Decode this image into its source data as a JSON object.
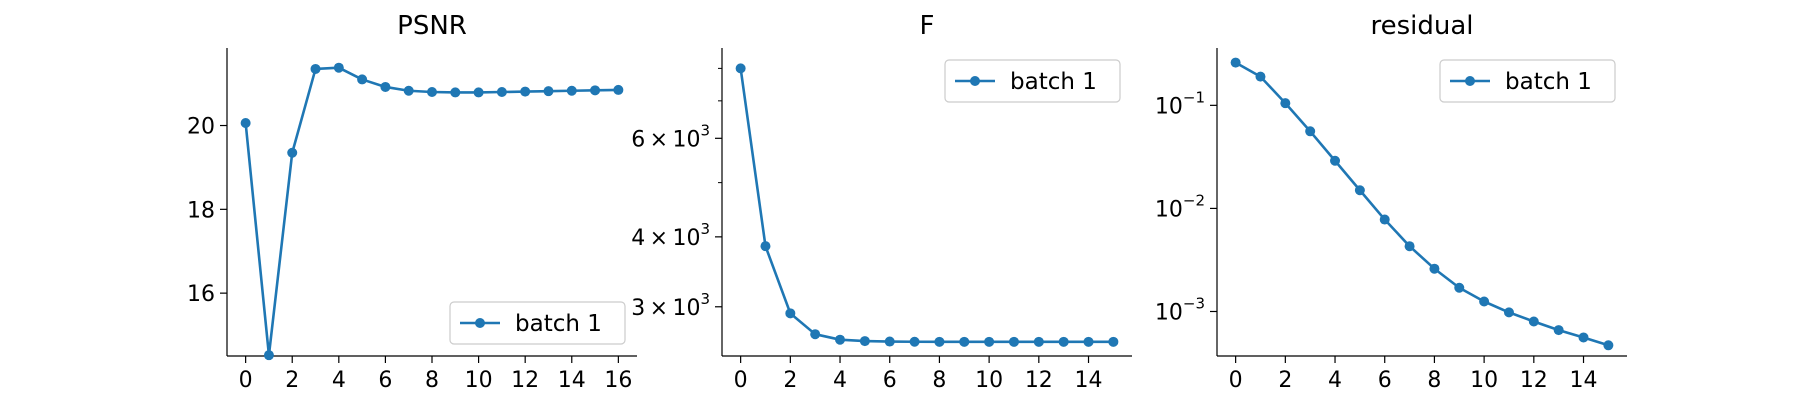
{
  "chart_data": [
    {
      "type": "line",
      "title": "PSNR",
      "xlabel": "",
      "ylabel": "",
      "yscale": "linear",
      "xlim": [
        -0.8,
        16.8
      ],
      "ylim": [
        14.5,
        21.85
      ],
      "x_ticks": [
        0,
        2,
        4,
        6,
        8,
        10,
        12,
        14,
        16
      ],
      "y_ticks": [
        {
          "value": 16,
          "label": "16"
        },
        {
          "value": 18,
          "label": "18"
        },
        {
          "value": 20,
          "label": "20"
        }
      ],
      "legend": {
        "position": "lower-right"
      },
      "grid": false,
      "series": [
        {
          "name": "batch 1",
          "color": "#1f77b4",
          "marker": "circle",
          "x": [
            0,
            1,
            2,
            3,
            4,
            5,
            6,
            7,
            8,
            9,
            10,
            11,
            12,
            13,
            14,
            15,
            16
          ],
          "values": [
            20.06,
            14.52,
            19.35,
            21.35,
            21.38,
            21.1,
            20.92,
            20.83,
            20.8,
            20.79,
            20.79,
            20.8,
            20.81,
            20.82,
            20.83,
            20.84,
            20.85
          ]
        }
      ]
    },
    {
      "type": "line",
      "title": "F",
      "xlabel": "",
      "ylabel": "",
      "yscale": "log",
      "xlim": [
        -0.75,
        15.75
      ],
      "ylim": [
        2450,
        8700
      ],
      "x_ticks": [
        0,
        2,
        4,
        6,
        8,
        10,
        12,
        14
      ],
      "y_ticks": [
        {
          "value": 3000,
          "mantissa": "3",
          "base": "10",
          "exponent": "3"
        },
        {
          "value": 4000,
          "mantissa": "4",
          "base": "10",
          "exponent": "3"
        },
        {
          "value": 6000,
          "mantissa": "6",
          "base": "10",
          "exponent": "3"
        }
      ],
      "y_minor_ticks": [
        5000,
        7000,
        8000
      ],
      "legend": {
        "position": "upper-right"
      },
      "grid": false,
      "series": [
        {
          "name": "batch 1",
          "color": "#1f77b4",
          "marker": "circle",
          "x": [
            0,
            1,
            2,
            3,
            4,
            5,
            6,
            7,
            8,
            9,
            10,
            11,
            12,
            13,
            14,
            15
          ],
          "values": [
            8000,
            3850,
            2920,
            2680,
            2620,
            2605,
            2600,
            2598,
            2597,
            2597,
            2597,
            2597,
            2597,
            2597,
            2597,
            2597
          ]
        }
      ]
    },
    {
      "type": "line",
      "title": "residual",
      "xlabel": "",
      "ylabel": "",
      "yscale": "log",
      "xlim": [
        -0.75,
        15.75
      ],
      "ylim": [
        0.00037,
        0.36
      ],
      "x_ticks": [
        0,
        2,
        4,
        6,
        8,
        10,
        12,
        14
      ],
      "y_ticks": [
        {
          "value": 0.001,
          "base": "10",
          "exponent": "−3"
        },
        {
          "value": 0.01,
          "base": "10",
          "exponent": "−2"
        },
        {
          "value": 0.1,
          "base": "10",
          "exponent": "−1"
        }
      ],
      "legend": {
        "position": "upper-right"
      },
      "grid": false,
      "series": [
        {
          "name": "batch 1",
          "color": "#1f77b4",
          "marker": "circle",
          "x": [
            0,
            1,
            2,
            3,
            4,
            5,
            6,
            7,
            8,
            9,
            10,
            11,
            12,
            13,
            14,
            15
          ],
          "values": [
            0.26,
            0.19,
            0.105,
            0.056,
            0.029,
            0.015,
            0.0078,
            0.0043,
            0.0026,
            0.0017,
            0.00125,
            0.00098,
            0.0008,
            0.00066,
            0.00056,
            0.00047
          ]
        }
      ]
    }
  ]
}
